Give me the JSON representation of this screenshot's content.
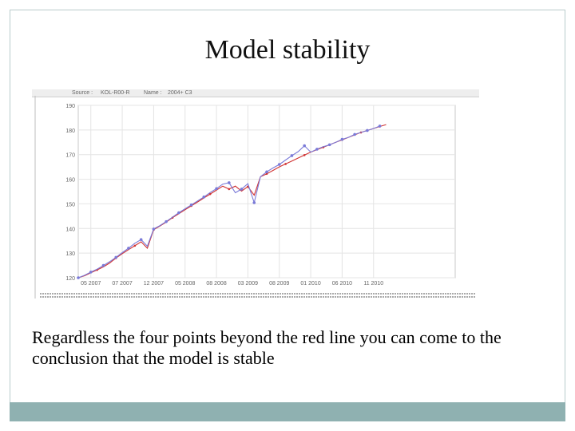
{
  "slide": {
    "title": "Model stability",
    "body": "Regardless the four points beyond the red line you can come to the conclusion that the model is stable",
    "frame_color": "#b9cccc",
    "footer_color": "#8fb1b1"
  },
  "chart_header": {
    "source_label": "Source :",
    "source_value": "KOL-R00-R",
    "name_label": "Name :",
    "name_value": "2004+ C3"
  },
  "chart_data": {
    "type": "line",
    "ylim": [
      120,
      190
    ],
    "yticks": [
      120,
      130,
      140,
      150,
      160,
      170,
      180,
      190
    ],
    "xlim": [
      0,
      60
    ],
    "xticks": [
      {
        "x": 2,
        "label": "05 2007"
      },
      {
        "x": 7,
        "label": "07 2007"
      },
      {
        "x": 12,
        "label": "12 2007"
      },
      {
        "x": 17,
        "label": "05 2008"
      },
      {
        "x": 22,
        "label": "08 2008"
      },
      {
        "x": 27,
        "label": "03 2009"
      },
      {
        "x": 32,
        "label": "08 2009"
      },
      {
        "x": 37,
        "label": "01 2010"
      },
      {
        "x": 42,
        "label": "06 2010"
      },
      {
        "x": 47,
        "label": "11 2010"
      }
    ],
    "grid": true,
    "series": [
      {
        "color": "#d03030",
        "x": [
          0,
          1,
          2,
          3,
          4,
          5,
          6,
          7,
          8,
          9,
          10,
          11,
          12,
          13,
          14,
          15,
          16,
          17,
          18,
          19,
          20,
          21,
          22,
          23,
          24,
          25,
          26,
          27,
          28,
          29,
          30,
          31,
          32,
          33,
          34,
          35,
          36,
          37,
          38,
          39,
          40,
          41,
          42,
          43,
          44,
          45,
          46,
          47,
          48,
          49
        ],
        "values": [
          120.0,
          120.8,
          122.0,
          123.2,
          124.4,
          126.0,
          128.0,
          129.8,
          131.4,
          133.0,
          134.6,
          132.0,
          139.5,
          141.0,
          142.6,
          144.4,
          146.0,
          147.6,
          149.2,
          150.8,
          152.4,
          154.0,
          155.6,
          157.2,
          156.0,
          157.2,
          155.2,
          157.0,
          153.5,
          161.0,
          162.2,
          163.6,
          165.0,
          166.2,
          167.4,
          168.6,
          169.8,
          171.0,
          172.0,
          173.0,
          174.0,
          175.0,
          176.0,
          177.0,
          178.0,
          179.0,
          179.8,
          180.6,
          181.4,
          182.2
        ]
      },
      {
        "color": "#7a7ad8",
        "x": [
          0,
          1,
          2,
          3,
          4,
          5,
          6,
          7,
          8,
          9,
          10,
          11,
          12,
          13,
          14,
          15,
          16,
          17,
          18,
          19,
          20,
          21,
          22,
          23,
          24,
          25,
          26,
          27,
          28,
          29,
          30,
          31,
          32,
          33,
          34,
          35,
          36,
          37,
          38,
          39,
          40,
          41,
          42,
          43,
          44,
          45,
          46,
          47,
          48
        ],
        "values": [
          120.0,
          121.0,
          122.3,
          123.5,
          125.0,
          126.5,
          128.3,
          130.2,
          132.0,
          134.0,
          135.5,
          132.8,
          139.8,
          141.2,
          142.8,
          144.6,
          146.4,
          148.0,
          149.6,
          151.2,
          152.8,
          154.6,
          156.2,
          158.0,
          158.6,
          154.5,
          156.0,
          158.2,
          150.5,
          161.0,
          163.0,
          164.6,
          166.0,
          167.8,
          169.6,
          171.2,
          173.6,
          171.0,
          172.2,
          173.2,
          174.0,
          175.0,
          176.2,
          177.0,
          178.2,
          179.0,
          179.8,
          180.6,
          181.6
        ]
      }
    ]
  }
}
